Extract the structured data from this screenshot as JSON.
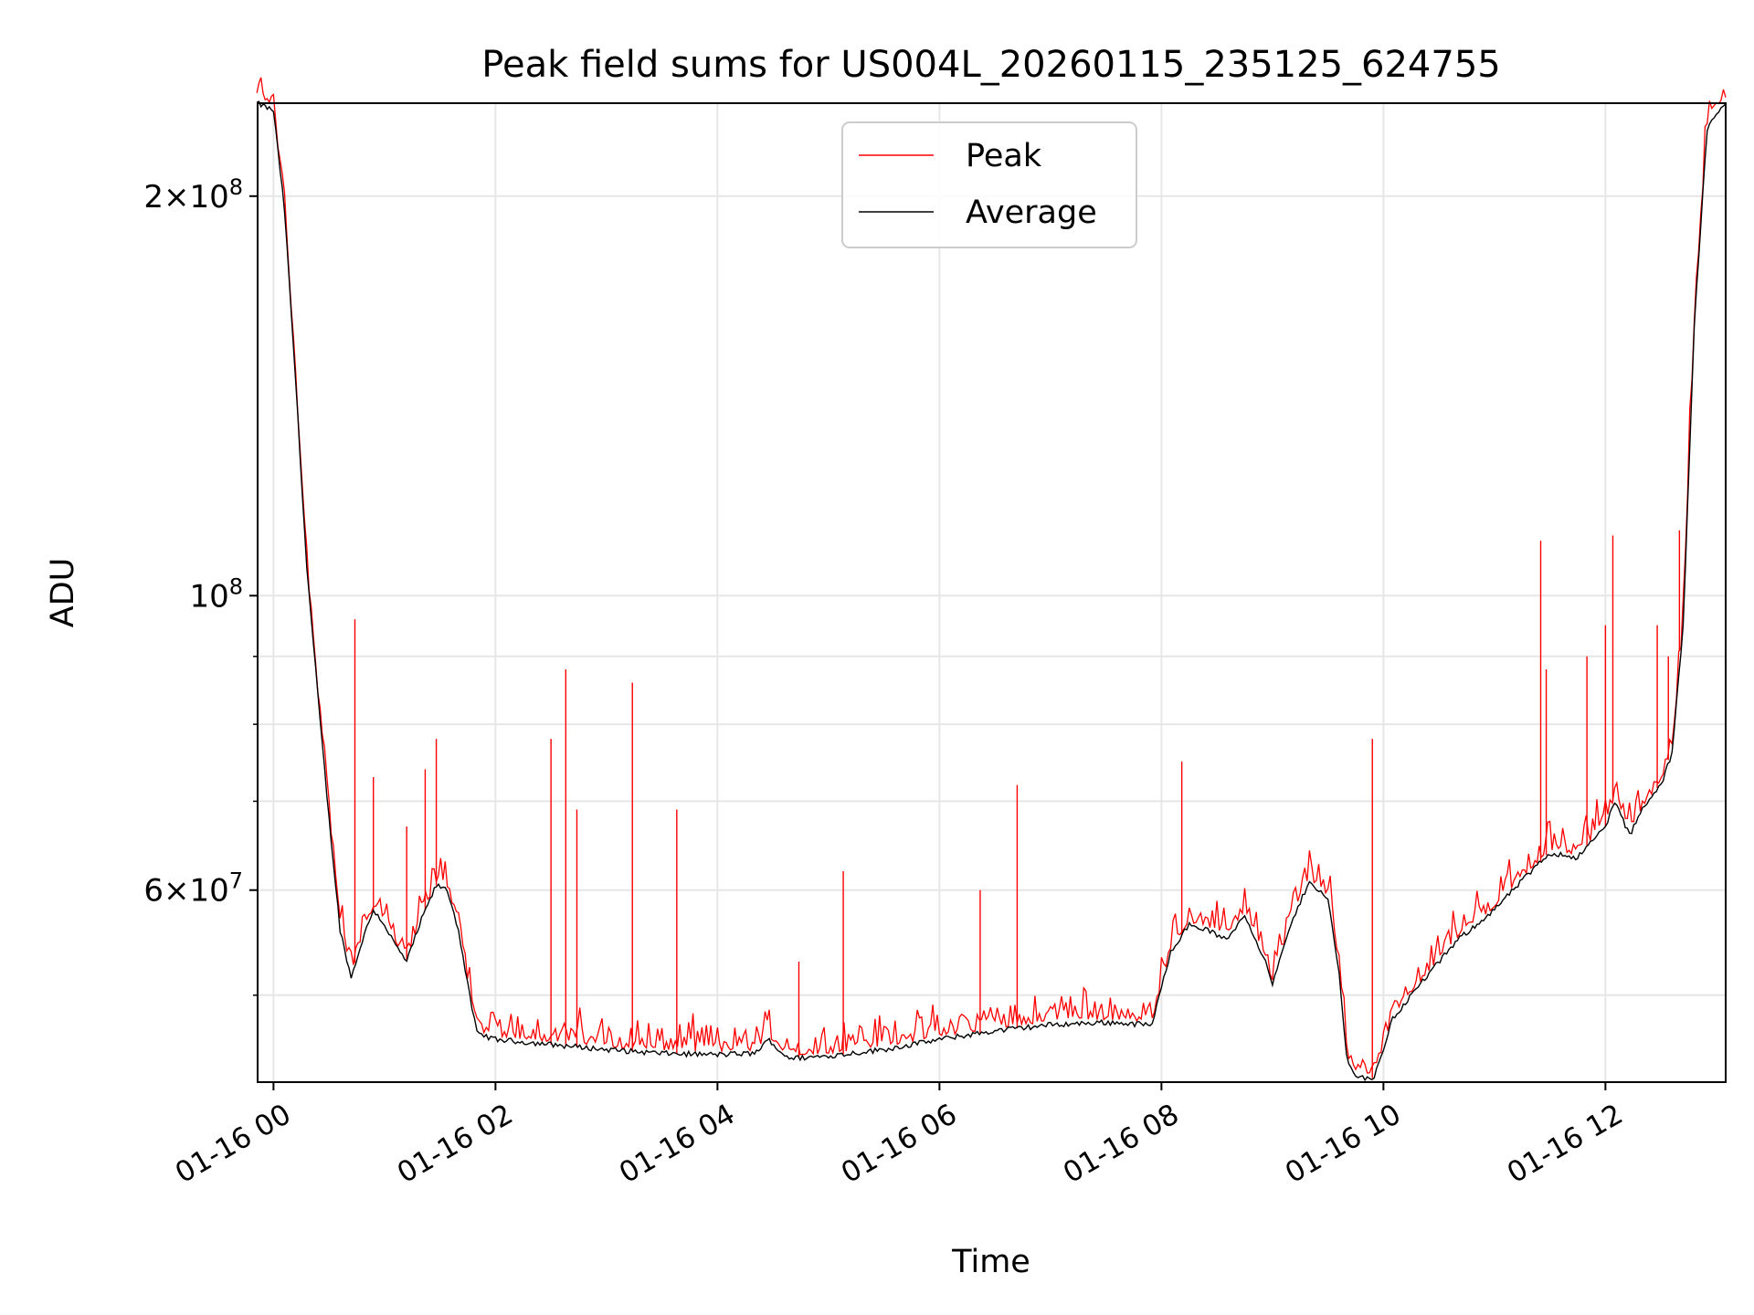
{
  "chart_data": {
    "type": "line",
    "title": "Peak field sums for US004L_20260115_235125_624755",
    "xlabel": "Time",
    "ylabel": "ADU",
    "y_scale": "log",
    "ylim": [
      43000000,
      235000000
    ],
    "xlim": [
      "2026-01-15 23:51:25",
      "2026-01-16 13:05:00"
    ],
    "grid": true,
    "legend_position": "top-center",
    "x_ticks": [
      "01-16 00",
      "01-16 02",
      "01-16 04",
      "01-16 06",
      "01-16 08",
      "01-16 10",
      "01-16 12"
    ],
    "y_major_ticks": [
      {
        "value": 200000000,
        "mantissa": "2",
        "base": "10",
        "exp": "8"
      },
      {
        "value": 100000000,
        "mantissa": "",
        "base": "10",
        "exp": "8"
      },
      {
        "value": 60000000,
        "mantissa": "6",
        "base": "10",
        "exp": "7"
      }
    ],
    "y_minor_grid": [
      50000000,
      70000000,
      80000000,
      90000000
    ],
    "series": [
      {
        "name": "Average",
        "color": "#000000",
        "points": [
          [
            "2026-01-15 23:51",
            235000000
          ],
          [
            "2026-01-16 00:00",
            232000000
          ],
          [
            "2026-01-16 00:06",
            195000000
          ],
          [
            "2026-01-16 00:12",
            145000000
          ],
          [
            "2026-01-16 00:18",
            105000000
          ],
          [
            "2026-01-16 00:24",
            84000000
          ],
          [
            "2026-01-16 00:30",
            68000000
          ],
          [
            "2026-01-16 00:36",
            56000000
          ],
          [
            "2026-01-16 00:42",
            51500000
          ],
          [
            "2026-01-16 00:48",
            55000000
          ],
          [
            "2026-01-16 00:54",
            58000000
          ],
          [
            "2026-01-16 01:00",
            56500000
          ],
          [
            "2026-01-16 01:06",
            54500000
          ],
          [
            "2026-01-16 01:12",
            53000000
          ],
          [
            "2026-01-16 01:20",
            57000000
          ],
          [
            "2026-01-16 01:28",
            60500000
          ],
          [
            "2026-01-16 01:34",
            60000000
          ],
          [
            "2026-01-16 01:40",
            56000000
          ],
          [
            "2026-01-16 01:46",
            50000000
          ],
          [
            "2026-01-16 01:50",
            46800000
          ],
          [
            "2026-01-16 02:00",
            46300000
          ],
          [
            "2026-01-16 02:30",
            45900000
          ],
          [
            "2026-01-16 03:00",
            45500000
          ],
          [
            "2026-01-16 03:30",
            45200000
          ],
          [
            "2026-01-16 04:00",
            45100000
          ],
          [
            "2026-01-16 04:20",
            45200000
          ],
          [
            "2026-01-16 04:28",
            46300000
          ],
          [
            "2026-01-16 04:34",
            45300000
          ],
          [
            "2026-01-16 04:40",
            44800000
          ],
          [
            "2026-01-16 05:00",
            45000000
          ],
          [
            "2026-01-16 05:30",
            45500000
          ],
          [
            "2026-01-16 06:00",
            46300000
          ],
          [
            "2026-01-16 06:30",
            47000000
          ],
          [
            "2026-01-16 07:00",
            47500000
          ],
          [
            "2026-01-16 07:30",
            47700000
          ],
          [
            "2026-01-16 07:55",
            47500000
          ],
          [
            "2026-01-16 08:05",
            54000000
          ],
          [
            "2026-01-16 08:15",
            56500000
          ],
          [
            "2026-01-16 08:25",
            56000000
          ],
          [
            "2026-01-16 08:35",
            55000000
          ],
          [
            "2026-01-16 08:45",
            57500000
          ],
          [
            "2026-01-16 08:55",
            53500000
          ],
          [
            "2026-01-16 09:00",
            51000000
          ],
          [
            "2026-01-16 09:10",
            56500000
          ],
          [
            "2026-01-16 09:20",
            61000000
          ],
          [
            "2026-01-16 09:30",
            59000000
          ],
          [
            "2026-01-16 09:36",
            52000000
          ],
          [
            "2026-01-16 09:40",
            45000000
          ],
          [
            "2026-01-16 09:45",
            43400000
          ],
          [
            "2026-01-16 09:55",
            43300000
          ],
          [
            "2026-01-16 10:05",
            48000000
          ],
          [
            "2026-01-16 10:20",
            51000000
          ],
          [
            "2026-01-16 10:40",
            55000000
          ],
          [
            "2026-01-16 11:00",
            58000000
          ],
          [
            "2026-01-16 11:15",
            61000000
          ],
          [
            "2026-01-16 11:30",
            64000000
          ],
          [
            "2026-01-16 11:45",
            63500000
          ],
          [
            "2026-01-16 12:00",
            67000000
          ],
          [
            "2026-01-16 12:05",
            70000000
          ],
          [
            "2026-01-16 12:13",
            66000000
          ],
          [
            "2026-01-16 12:20",
            69000000
          ],
          [
            "2026-01-16 12:30",
            72000000
          ],
          [
            "2026-01-16 12:36",
            76000000
          ],
          [
            "2026-01-16 12:42",
            95000000
          ],
          [
            "2026-01-16 12:48",
            160000000
          ],
          [
            "2026-01-16 12:55",
            225000000
          ],
          [
            "2026-01-16 13:05",
            235000000
          ]
        ]
      },
      {
        "name": "Peak",
        "color": "#ff0000",
        "spikes": [
          [
            "2026-01-16 00:44",
            96000000
          ],
          [
            "2026-01-16 00:54",
            73000000
          ],
          [
            "2026-01-16 01:12",
            67000000
          ],
          [
            "2026-01-16 01:22",
            74000000
          ],
          [
            "2026-01-16 01:28",
            78000000
          ],
          [
            "2026-01-16 02:30",
            78000000
          ],
          [
            "2026-01-16 02:38",
            88000000
          ],
          [
            "2026-01-16 02:44",
            69000000
          ],
          [
            "2026-01-16 03:14",
            86000000
          ],
          [
            "2026-01-16 03:38",
            69000000
          ],
          [
            "2026-01-16 04:44",
            53000000
          ],
          [
            "2026-01-16 05:08",
            62000000
          ],
          [
            "2026-01-16 06:22",
            60000000
          ],
          [
            "2026-01-16 06:42",
            72000000
          ],
          [
            "2026-01-16 08:11",
            75000000
          ],
          [
            "2026-01-16 09:54",
            78000000
          ],
          [
            "2026-01-16 11:25",
            110000000
          ],
          [
            "2026-01-16 11:28",
            88000000
          ],
          [
            "2026-01-16 11:50",
            90000000
          ],
          [
            "2026-01-16 12:00",
            95000000
          ],
          [
            "2026-01-16 12:04",
            111000000
          ],
          [
            "2026-01-16 12:28",
            95000000
          ],
          [
            "2026-01-16 12:34",
            90000000
          ],
          [
            "2026-01-16 12:40",
            112000000
          ]
        ]
      }
    ]
  }
}
